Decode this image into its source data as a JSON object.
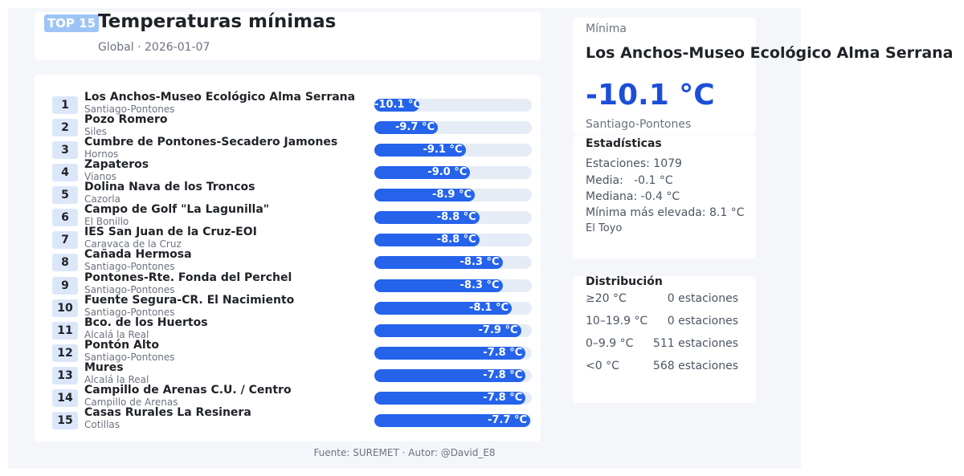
{
  "header": {
    "badge": "TOP 15",
    "title": "Temperaturas mínimas",
    "subtitle": "Global · 2026-01-07"
  },
  "chart_data": {
    "type": "bar",
    "orientation": "horizontal",
    "unit": "°C",
    "categories": [
      "Los Anchos-Museo Ecológico Alma Serrana",
      "Pozo Romero",
      "Cumbre de Pontones-Secadero Jamones",
      "Zapateros",
      "Dolina Nava de los Troncos",
      "Campo de Golf \"La Lagunilla\"",
      "IES San Juan de la Cruz-EOI",
      "Cañada Hermosa",
      "Pontones-Rte. Fonda del Perchel",
      "Fuente Segura-CR. El Nacimiento",
      "Bco. de los Huertos",
      "Pontón Alto",
      "Mures",
      "Campillo de Arenas C.U. / Centro",
      "Casas Rurales La Resinera"
    ],
    "values": [
      -10.1,
      -9.7,
      -9.1,
      -9.0,
      -8.9,
      -8.8,
      -8.8,
      -8.3,
      -8.3,
      -8.1,
      -7.9,
      -7.8,
      -7.8,
      -7.8,
      -7.7
    ],
    "rows": [
      {
        "rank": "1",
        "name": "Los Anchos-Museo Ecológico Alma Serrana",
        "municipality": "Santiago-Pontones",
        "value": -10.1,
        "label": "-10.1 °C"
      },
      {
        "rank": "2",
        "name": "Pozo Romero",
        "municipality": "Siles",
        "value": -9.7,
        "label": "-9.7 °C"
      },
      {
        "rank": "3",
        "name": "Cumbre de Pontones-Secadero Jamones",
        "municipality": "Hornos",
        "value": -9.1,
        "label": "-9.1 °C"
      },
      {
        "rank": "4",
        "name": "Zapateros",
        "municipality": "Vianos",
        "value": -9.0,
        "label": "-9.0 °C"
      },
      {
        "rank": "5",
        "name": "Dolina Nava de los Troncos",
        "municipality": "Cazorla",
        "value": -8.9,
        "label": "-8.9 °C"
      },
      {
        "rank": "6",
        "name": "Campo de Golf \"La Lagunilla\"",
        "municipality": "El Bonillo",
        "value": -8.8,
        "label": "-8.8 °C"
      },
      {
        "rank": "7",
        "name": "IES San Juan de la Cruz-EOI",
        "municipality": "Caravaca de la Cruz",
        "value": -8.8,
        "label": "-8.8 °C"
      },
      {
        "rank": "8",
        "name": "Cañada Hermosa",
        "municipality": "Santiago-Pontones",
        "value": -8.3,
        "label": "-8.3 °C"
      },
      {
        "rank": "9",
        "name": "Pontones-Rte. Fonda del Perchel",
        "municipality": "Santiago-Pontones",
        "value": -8.3,
        "label": "-8.3 °C"
      },
      {
        "rank": "10",
        "name": "Fuente Segura-CR. El Nacimiento",
        "municipality": "Santiago-Pontones",
        "value": -8.1,
        "label": "-8.1 °C"
      },
      {
        "rank": "11",
        "name": "Bco. de los Huertos",
        "municipality": "Alcalá la Real",
        "value": -7.9,
        "label": "-7.9 °C"
      },
      {
        "rank": "12",
        "name": "Pontón Alto",
        "municipality": "Santiago-Pontones",
        "value": -7.8,
        "label": "-7.8 °C"
      },
      {
        "rank": "13",
        "name": "Mures",
        "municipality": "Alcalá la Real",
        "value": -7.8,
        "label": "-7.8 °C"
      },
      {
        "rank": "14",
        "name": "Campillo de Arenas C.U. / Centro",
        "municipality": "Campillo de Arenas",
        "value": -7.8,
        "label": "-7.8 °C"
      },
      {
        "rank": "15",
        "name": "Casas Rurales La Resinera",
        "municipality": "Cotillas",
        "value": -7.7,
        "label": "-7.7 °C"
      }
    ],
    "bar_color": "#2563eb",
    "track_color": "#e6ecf5"
  },
  "minimum": {
    "label": "Mínima",
    "station": "Los Anchos-Museo Ecológico Alma Serrana",
    "value": "-10.1 °C",
    "municipality": "Santiago-Pontones"
  },
  "stats": {
    "title": "Estadísticas",
    "stations": "Estaciones: 1079",
    "mean": "Media:   -0.1 °C",
    "median": "Mediana: -0.4 °C",
    "highest_min": "Mínima más elevada: 8.1 °C",
    "highest_min_station": "El Toyo"
  },
  "distribution": {
    "title": "Distribución",
    "bins": [
      {
        "label": "≥20 °C",
        "count": "0 estaciones"
      },
      {
        "label": "10–19.9 °C",
        "count": "0 estaciones"
      },
      {
        "label": "0–9.9 °C",
        "count": "511 estaciones"
      },
      {
        "label": "<0 °C",
        "count": "568 estaciones"
      }
    ]
  },
  "footer": "Fuente: SUREMET · Autor: @David_E8",
  "colors": {
    "accent": "#2563eb",
    "min_value": "#1d4ed8",
    "badge": "#9ec4f6",
    "rank_bg": "#dbe7f9",
    "background": "#f4f6fa"
  }
}
